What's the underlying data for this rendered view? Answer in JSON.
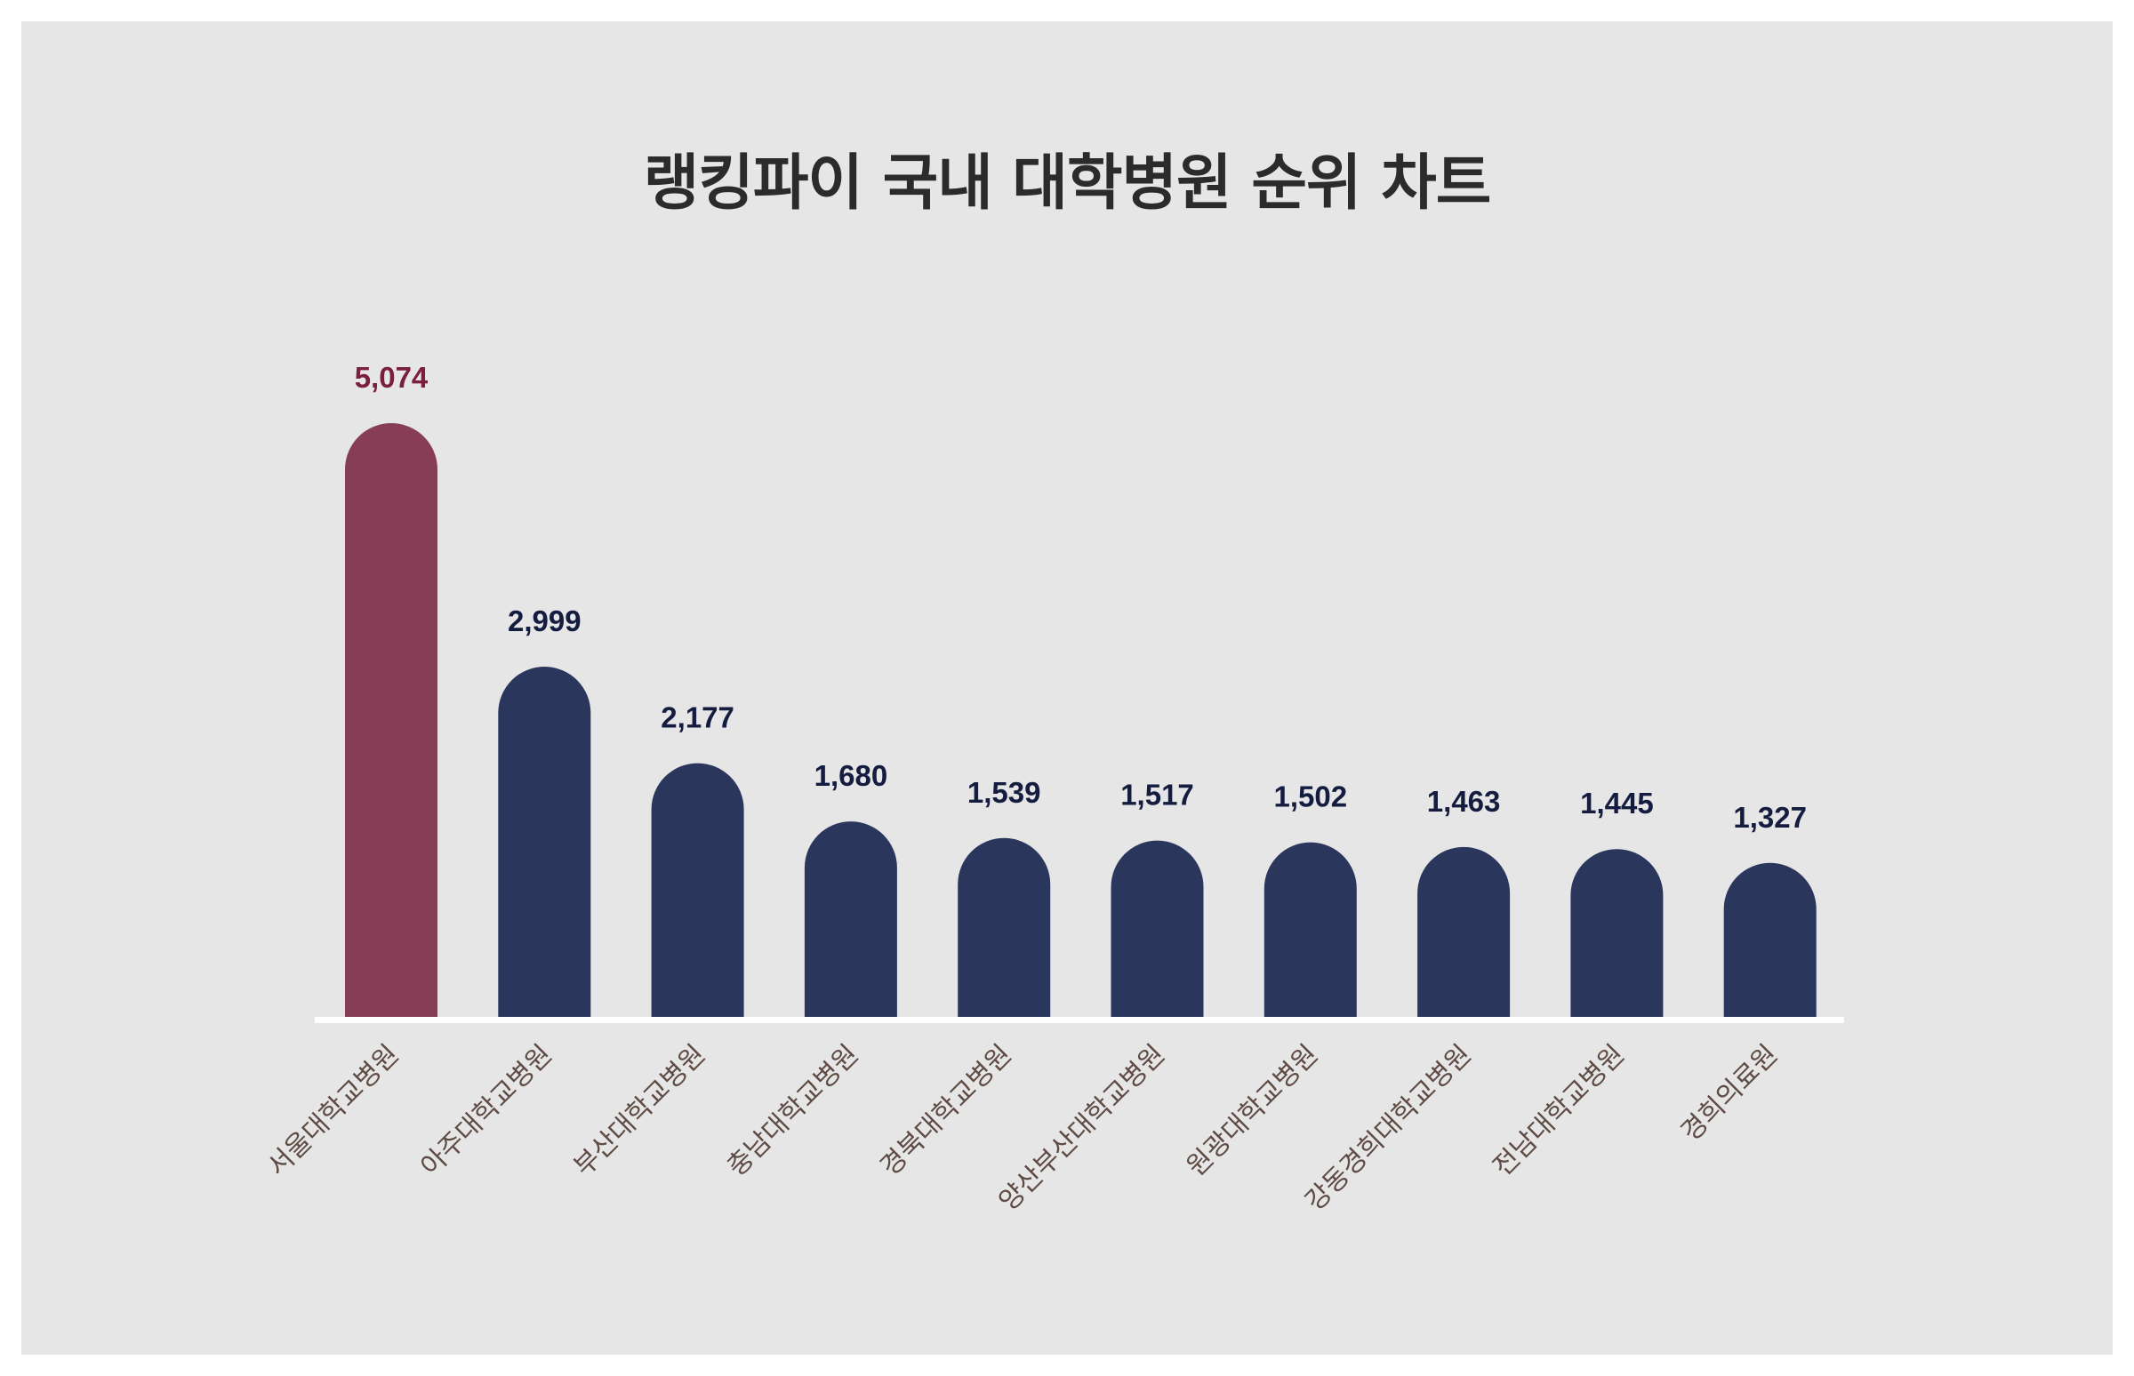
{
  "chart_data": {
    "type": "bar",
    "title": "랭킹파이 국내 대학병원 순위 차트",
    "categories": [
      "서울대학교병원",
      "아주대학교병원",
      "부산대학교병원",
      "충남대학교병원",
      "경북대학교병원",
      "양산부산대학교병원",
      "원광대학교병원",
      "강동경희대학교병원",
      "전남대학교병원",
      "경희의료원"
    ],
    "values": [
      5074,
      2999,
      2177,
      1680,
      1539,
      1517,
      1502,
      1463,
      1445,
      1327
    ],
    "value_labels": [
      "5,074",
      "2,999",
      "2,177",
      "1,680",
      "1,539",
      "1,517",
      "1,502",
      "1,463",
      "1,445",
      "1,327"
    ],
    "xlabel": "",
    "ylabel": "",
    "ylim": [
      0,
      5074
    ],
    "grid": false,
    "legend": "none",
    "colors": {
      "highlight": "#883d56",
      "bar": "#2b365c",
      "highlight_label": "#7a1f3d",
      "label": "#141c3f",
      "baseline": "#ffffff",
      "background": "#e6e6e7"
    }
  }
}
